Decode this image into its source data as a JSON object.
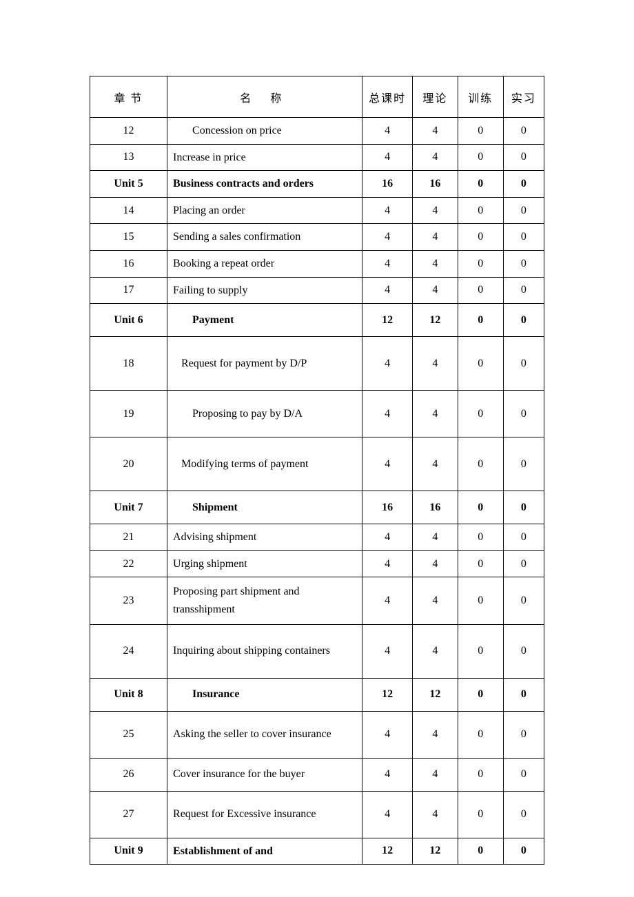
{
  "table": {
    "columns": {
      "chapter": "章 节",
      "name": "名   称",
      "total": "总课时",
      "theory": "理论",
      "training": "训练",
      "practice": "实习"
    },
    "column_widths": [
      "17%",
      "43%",
      "11%",
      "10%",
      "10%",
      "9%"
    ],
    "border_color": "#000000",
    "background_color": "#ffffff",
    "font_family": "SimSun",
    "font_size_pt": 12,
    "rows": [
      {
        "chapter": "12",
        "name": "Concession on price",
        "total": "4",
        "theory": "4",
        "training": "0",
        "practice": "0",
        "bold": false,
        "indent": 1,
        "size": "small"
      },
      {
        "chapter": "13",
        "name": "Increase in price",
        "total": "4",
        "theory": "4",
        "training": "0",
        "practice": "0",
        "bold": false,
        "indent": 0,
        "size": "small"
      },
      {
        "chapter": "Unit 5",
        "name": "Business contracts and orders",
        "total": "16",
        "theory": "16",
        "training": "0",
        "practice": "0",
        "bold": true,
        "indent": 0,
        "size": "small"
      },
      {
        "chapter": "14",
        "name": "Placing an order",
        "total": "4",
        "theory": "4",
        "training": "0",
        "practice": "0",
        "bold": false,
        "indent": 0,
        "size": "small"
      },
      {
        "chapter": "15",
        "name": "Sending a sales confirmation",
        "total": "4",
        "theory": "4",
        "training": "0",
        "practice": "0",
        "bold": false,
        "indent": 0,
        "size": "small"
      },
      {
        "chapter": "16",
        "name": "Booking a repeat order",
        "total": "4",
        "theory": "4",
        "training": "0",
        "practice": "0",
        "bold": false,
        "indent": 0,
        "size": "small"
      },
      {
        "chapter": "17",
        "name": "Failing to supply",
        "total": "4",
        "theory": "4",
        "training": "0",
        "practice": "0",
        "bold": false,
        "indent": 0,
        "size": "small"
      },
      {
        "chapter": "Unit 6",
        "name": "Payment",
        "total": "12",
        "theory": "12",
        "training": "0",
        "practice": "0",
        "bold": true,
        "indent": 1,
        "size": "med"
      },
      {
        "chapter": "18",
        "name": "Request for payment by D/P",
        "total": "4",
        "theory": "4",
        "training": "0",
        "practice": "0",
        "bold": false,
        "indent": 0,
        "size": "xlarge",
        "namePrefix": "   "
      },
      {
        "chapter": "19",
        "name": "Proposing to pay by D/A",
        "total": "4",
        "theory": "4",
        "training": "0",
        "practice": "0",
        "bold": false,
        "indent": 1,
        "size": "large"
      },
      {
        "chapter": "20",
        "name": "Modifying terms of payment",
        "total": "4",
        "theory": "4",
        "training": "0",
        "practice": "0",
        "bold": false,
        "indent": 0,
        "size": "xlarge",
        "namePrefix": "   "
      },
      {
        "chapter": "Unit 7",
        "name": "Shipment",
        "total": "16",
        "theory": "16",
        "training": "0",
        "practice": "0",
        "bold": true,
        "indent": 1,
        "size": "med"
      },
      {
        "chapter": "21",
        "name": "Advising shipment",
        "total": "4",
        "theory": "4",
        "training": "0",
        "practice": "0",
        "bold": false,
        "indent": 0,
        "size": "small"
      },
      {
        "chapter": "22",
        "name": "Urging shipment",
        "total": "4",
        "theory": "4",
        "training": "0",
        "practice": "0",
        "bold": false,
        "indent": 0,
        "size": "small"
      },
      {
        "chapter": "23",
        "name": "Proposing part shipment and transshipment",
        "total": "4",
        "theory": "4",
        "training": "0",
        "practice": "0",
        "bold": false,
        "indent": 0,
        "size": "large"
      },
      {
        "chapter": "24",
        "name": "Inquiring about shipping containers",
        "total": "4",
        "theory": "4",
        "training": "0",
        "practice": "0",
        "bold": false,
        "indent": 0,
        "size": "xlarge"
      },
      {
        "chapter": "Unit 8",
        "name": "Insurance",
        "total": "12",
        "theory": "12",
        "training": "0",
        "practice": "0",
        "bold": true,
        "indent": 1,
        "size": "med"
      },
      {
        "chapter": "25",
        "name": "Asking the seller to cover insurance",
        "total": "4",
        "theory": "4",
        "training": "0",
        "practice": "0",
        "bold": false,
        "indent": 0,
        "size": "large"
      },
      {
        "chapter": "26",
        "name": "Cover insurance for the buyer",
        "total": "4",
        "theory": "4",
        "training": "0",
        "practice": "0",
        "bold": false,
        "indent": 0,
        "size": "med"
      },
      {
        "chapter": "27",
        "name": "Request for  Excessive insurance",
        "total": "4",
        "theory": "4",
        "training": "0",
        "practice": "0",
        "bold": false,
        "indent": 0,
        "size": "large"
      },
      {
        "chapter": "Unit 9",
        "name": "Establishment of and",
        "total": "12",
        "theory": "12",
        "training": "0",
        "practice": "0",
        "bold": true,
        "indent": 0,
        "size": "small"
      }
    ]
  }
}
